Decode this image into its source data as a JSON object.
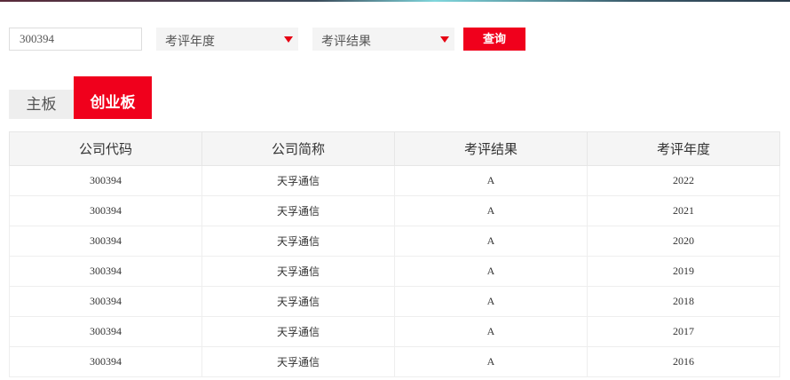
{
  "search": {
    "code_value": "300394",
    "year_placeholder": "考评年度",
    "result_placeholder": "考评结果",
    "query_label": "查询"
  },
  "tabs": [
    {
      "label": "主板"
    },
    {
      "label": "创业板",
      "active": true
    }
  ],
  "table": {
    "headers": [
      "公司代码",
      "公司简称",
      "考评结果",
      "考评年度"
    ],
    "rows": [
      [
        "300394",
        "天孚通信",
        "A",
        "2022"
      ],
      [
        "300394",
        "天孚通信",
        "A",
        "2021"
      ],
      [
        "300394",
        "天孚通信",
        "A",
        "2020"
      ],
      [
        "300394",
        "天孚通信",
        "A",
        "2019"
      ],
      [
        "300394",
        "天孚通信",
        "A",
        "2018"
      ],
      [
        "300394",
        "天孚通信",
        "A",
        "2017"
      ],
      [
        "300394",
        "天孚通信",
        "A",
        "2016"
      ]
    ]
  },
  "colors": {
    "accent": "#f0001c"
  }
}
